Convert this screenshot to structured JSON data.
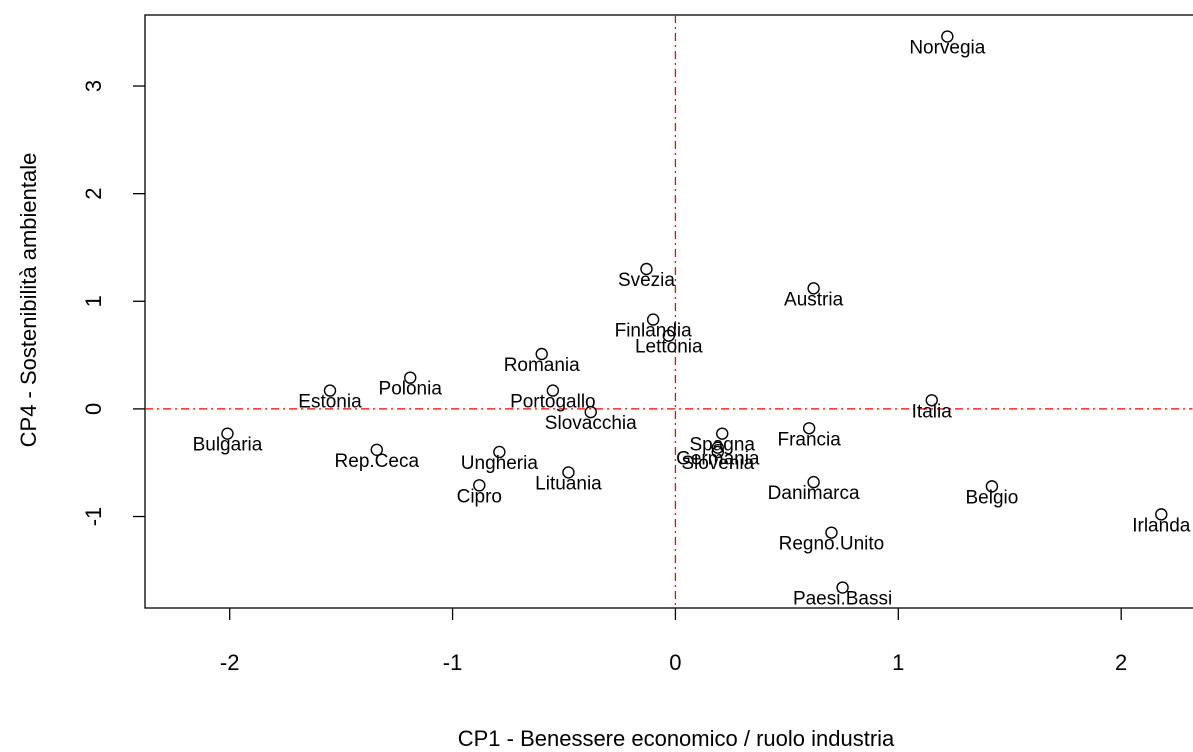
{
  "chart_data": {
    "type": "scatter",
    "xlabel": "CP1 - Benessere economico / ruolo industria",
    "ylabel": "CP4 - Sostenibilità ambientale",
    "labels": [
      "Norvegia",
      "Svezia",
      "Austria",
      "Finlandia",
      "Lettonia",
      "Romania",
      "Estonia",
      "Polonia",
      "Portogallo",
      "Slovacchia",
      "Italia",
      "Bulgaria",
      "Rep.Ceca",
      "Spagna",
      "Francia",
      "Germania",
      "Slovenia",
      "Ungheria",
      "Lituania",
      "Cipro",
      "Danimarca",
      "Belgio",
      "Irlanda",
      "Regno.Unito",
      "Paesi.Bassi"
    ],
    "x": [
      1.22,
      -0.13,
      0.62,
      -0.1,
      -0.03,
      -0.6,
      -1.55,
      -1.19,
      -0.55,
      -0.38,
      1.15,
      -2.01,
      -1.34,
      0.21,
      0.6,
      0.19,
      0.19,
      -0.79,
      -0.48,
      -0.88,
      0.62,
      1.42,
      2.18,
      0.7,
      0.75
    ],
    "y": [
      3.46,
      1.3,
      1.12,
      0.83,
      0.68,
      0.51,
      0.17,
      0.29,
      0.17,
      -0.03,
      0.08,
      -0.23,
      -0.38,
      -0.23,
      -0.18,
      -0.36,
      -0.4,
      -0.4,
      -0.59,
      -0.71,
      -0.68,
      -0.72,
      -0.98,
      -1.15,
      -1.66
    ],
    "xlim": [
      -2.38,
      2.32
    ],
    "ylim": [
      -1.85,
      3.66
    ],
    "xticks": [
      -2,
      -1,
      0,
      1,
      2
    ],
    "yticks": [
      -1,
      0,
      1,
      2,
      3
    ],
    "reference_lines": {
      "x": 0,
      "y": 0,
      "color": "#ff0000"
    },
    "color": "#000000"
  }
}
